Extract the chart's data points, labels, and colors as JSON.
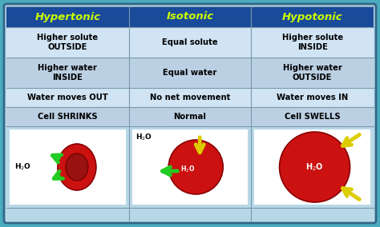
{
  "bg_color": "#4aabbf",
  "table_bg": "#b8d8e8",
  "header_bg": "#1a4a9a",
  "header_text_color": "#ccff00",
  "headers": [
    "Hypertonic",
    "Isotonic",
    "Hypotonic"
  ],
  "rows": [
    [
      "Higher solute\nOUTSIDE",
      "Equal solute",
      "Higher solute\nINSIDE"
    ],
    [
      "Higher water\nINSIDE",
      "Equal water",
      "Higher water\nOUTSIDE"
    ],
    [
      "Water moves OUT",
      "No net movement",
      "Water moves IN"
    ],
    [
      "Cell SHRINKS",
      "Normal",
      "Cell SWELLS"
    ]
  ],
  "cell_text_color": "#000000",
  "row_colors": [
    "#d0e4f4",
    "#bcd0e4"
  ],
  "header_fontsize": 9.5,
  "cell_fontsize": 7.2,
  "img_fontsize": 6.5,
  "figsize": [
    4.74,
    2.84
  ],
  "dpi": 100,
  "cell_red": "#cc1111",
  "cell_dark_red": "#991111",
  "green_arrow": "#22cc22",
  "yellow_arrow": "#ddcc00",
  "line_color": "#7799aa"
}
